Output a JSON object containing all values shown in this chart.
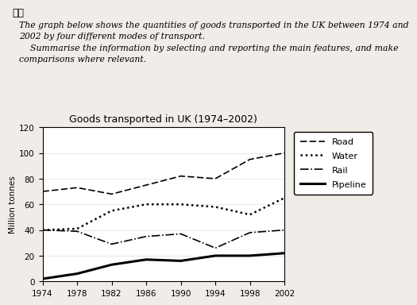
{
  "title": "Goods transported in UK (1974–2002)",
  "ylabel": "Million tonnes",
  "years": [
    1974,
    1978,
    1982,
    1986,
    1990,
    1994,
    1998,
    2002
  ],
  "road": [
    70,
    73,
    68,
    75,
    82,
    80,
    95,
    100
  ],
  "water": [
    40,
    41,
    55,
    60,
    60,
    58,
    52,
    65
  ],
  "rail": [
    40,
    39,
    29,
    35,
    37,
    26,
    38,
    40
  ],
  "pipeline": [
    2,
    6,
    13,
    17,
    16,
    20,
    20,
    22
  ],
  "ylim": [
    0,
    120
  ],
  "yticks": [
    0,
    20,
    40,
    60,
    80,
    100,
    120
  ],
  "background_color": "#f0ece8",
  "header_label": "题目",
  "prompt_line1": "The graph below shows the quantities of goods transported in the UK between 1974 and",
  "prompt_line2": "2002 by four different modes of transport.",
  "prompt_line3": "    Summarise the information by selecting and reporting the main features, and make",
  "prompt_line4": "comparisons where relevant.",
  "legend_labels": [
    "Road",
    "Water",
    "Rail",
    "Pipeline"
  ],
  "title_fontsize": 9,
  "axis_fontsize": 7.5,
  "legend_fontsize": 8
}
